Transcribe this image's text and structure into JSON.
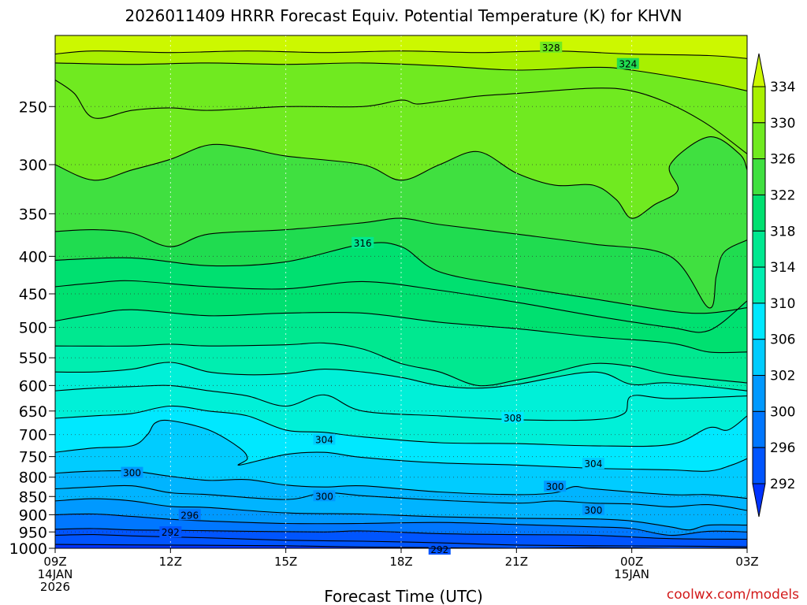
{
  "title": "2026011409 HRRR Forecast Equiv. Potential Temperature (K) for KHVN",
  "credit": "coolwx.com/models",
  "colors": {
    "ground": "#a05a2c",
    "bands": [
      "#0033ff",
      "#0055ff",
      "#0077ff",
      "#0099ff",
      "#00b4ff",
      "#00ccff",
      "#00e8ff",
      "#00f0d8",
      "#00eeb0",
      "#00e890",
      "#00e070",
      "#20dc50",
      "#40e040",
      "#70ea20",
      "#a8f000",
      "#ccf800"
    ]
  },
  "chart_data": {
    "type": "contour",
    "title": "2026011409 HRRR Forecast Equiv. Potential Temperature (K) for KHVN",
    "xlabel": "Forecast Time (UTC)",
    "ylabel": "",
    "x_ticks": [
      {
        "lines": [
          "09Z",
          "14JAN",
          "2026"
        ]
      },
      {
        "lines": [
          "12Z"
        ]
      },
      {
        "lines": [
          "15Z"
        ]
      },
      {
        "lines": [
          "18Z"
        ]
      },
      {
        "lines": [
          "21Z"
        ]
      },
      {
        "lines": [
          "00Z",
          "15JAN"
        ]
      },
      {
        "lines": [
          "03Z"
        ]
      }
    ],
    "x_hours": [
      0,
      3,
      6,
      9,
      12,
      15,
      18
    ],
    "y_ticks": [
      250,
      300,
      350,
      400,
      450,
      500,
      550,
      600,
      650,
      700,
      750,
      800,
      850,
      900,
      950,
      1000
    ],
    "y_range_hPa": [
      200,
      1000
    ],
    "y_scale": "log-pressure",
    "colorbar": {
      "ticks": [
        292,
        296,
        300,
        302,
        306,
        310,
        314,
        318,
        322,
        326,
        330,
        334
      ],
      "range": [
        290,
        336
      ],
      "extend": "both"
    },
    "contour_labels": [
      {
        "value": "328",
        "hour": 12.9,
        "hPa": 208
      },
      {
        "value": "324",
        "hour": 14.9,
        "hPa": 219
      },
      {
        "value": "316",
        "hour": 8.0,
        "hPa": 384
      },
      {
        "value": "308",
        "hour": 11.9,
        "hPa": 665
      },
      {
        "value": "304",
        "hour": 7.0,
        "hPa": 712
      },
      {
        "value": "304",
        "hour": 14.0,
        "hPa": 768
      },
      {
        "value": "300",
        "hour": 2.0,
        "hPa": 790
      },
      {
        "value": "300",
        "hour": 7.0,
        "hPa": 850
      },
      {
        "value": "300",
        "hour": 13.0,
        "hPa": 825
      },
      {
        "value": "300",
        "hour": 14.0,
        "hPa": 888
      },
      {
        "value": "296",
        "hour": 3.5,
        "hPa": 902
      },
      {
        "value": "292",
        "hour": 3.0,
        "hPa": 952
      },
      {
        "value": "292",
        "hour": 10.0,
        "hPa": 1005
      }
    ],
    "ground_level_hPa": 1000,
    "grid": true
  }
}
